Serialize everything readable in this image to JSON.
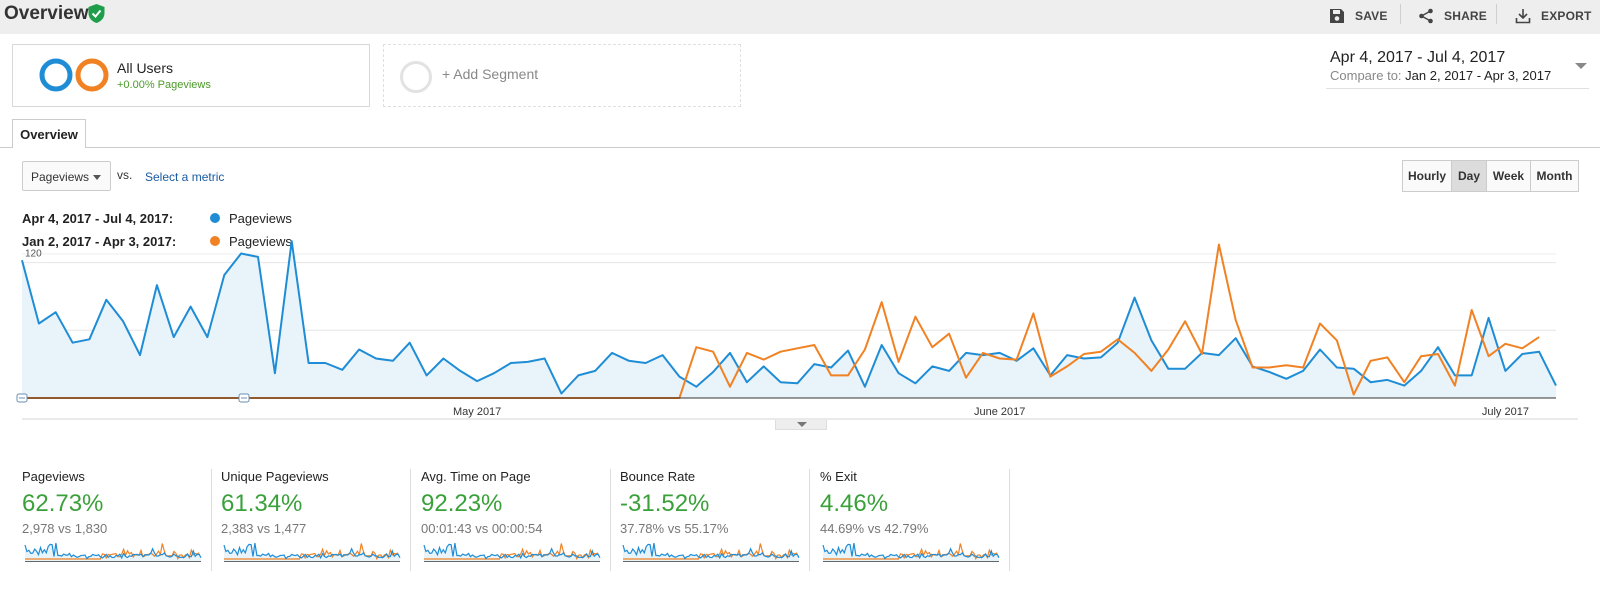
{
  "header": {
    "title": "Overview",
    "actions": [
      {
        "label": "SAVE",
        "icon": "save-icon"
      },
      {
        "label": "SHARE",
        "icon": "share-icon"
      },
      {
        "label": "EXPORT",
        "icon": "export-icon"
      }
    ]
  },
  "segments": {
    "active": {
      "name": "All Users",
      "subtitle": "+0.00% Pageviews"
    },
    "add_label": "+ Add Segment"
  },
  "date_range": {
    "main": "Apr 4, 2017 - Jul 4, 2017",
    "compare_label": "Compare to:",
    "compare_range": "Jan 2, 2017 - Apr 3, 2017"
  },
  "tabs": [
    {
      "label": "Overview",
      "active": true
    }
  ],
  "controls": {
    "metric": "Pageviews",
    "vs": "vs.",
    "select_metric": "Select a metric",
    "granularity": [
      "Hourly",
      "Day",
      "Week",
      "Month"
    ],
    "granularity_active": "Day"
  },
  "legend": [
    {
      "range": "Apr 4, 2017 - Jul 4, 2017:",
      "metric": "Pageviews",
      "color": "#1f8dd6"
    },
    {
      "range": "Jan 2, 2017 - Apr 3, 2017:",
      "metric": "Pageviews",
      "color": "#f08224"
    }
  ],
  "colors": {
    "current": "#1f8dd6",
    "previous": "#f08224",
    "fill": "#e8f3fa",
    "positive": "#3aa13a"
  },
  "chart_data": {
    "type": "line",
    "y_ticks": [
      "120",
      "60"
    ],
    "ylim": [
      0,
      140
    ],
    "x_labels": [
      {
        "label": "May 2017",
        "index": 27
      },
      {
        "label": "June 2017",
        "index": 58
      },
      {
        "label": "July 2017",
        "index": 88
      }
    ],
    "series": [
      {
        "name": "Pageviews",
        "color": "#1f8dd6",
        "fill": true,
        "values": [
          122,
          66,
          76,
          49,
          52,
          87,
          68,
          38,
          100,
          54,
          81,
          54,
          109,
          128,
          125,
          22,
          139,
          31,
          31,
          25,
          43,
          35,
          33,
          49,
          20,
          35,
          24,
          15,
          22,
          31,
          32,
          35,
          4,
          20,
          24,
          40,
          33,
          31,
          38,
          19,
          10,
          23,
          40,
          14,
          28,
          14,
          13,
          30,
          27,
          42,
          10,
          47,
          22,
          13,
          28,
          24,
          40,
          38,
          40,
          33,
          44,
          20,
          38,
          35,
          36,
          49,
          89,
          51,
          26,
          26,
          40,
          38,
          53,
          28,
          23,
          17,
          24,
          43,
          27,
          26,
          14,
          16,
          11,
          24,
          45,
          20,
          20,
          71,
          24,
          39,
          41,
          11
        ]
      },
      {
        "name": "Pageviews",
        "color": "#f08224",
        "fill": false,
        "values": [
          0,
          0,
          0,
          0,
          0,
          0,
          0,
          0,
          0,
          0,
          0,
          0,
          0,
          0,
          0,
          0,
          0,
          0,
          0,
          0,
          0,
          0,
          0,
          0,
          0,
          0,
          0,
          0,
          0,
          0,
          0,
          0,
          0,
          0,
          0,
          0,
          0,
          0,
          0,
          0,
          45,
          41,
          10,
          40,
          34,
          41,
          44,
          47,
          20,
          20,
          43,
          85,
          32,
          72,
          45,
          57,
          18,
          40,
          35,
          34,
          75,
          19,
          28,
          39,
          41,
          52,
          40,
          24,
          43,
          68,
          39,
          136,
          69,
          27,
          27,
          29,
          27,
          66,
          51,
          3,
          33,
          36,
          14,
          37,
          39,
          11,
          78,
          37,
          48,
          44,
          54
        ]
      }
    ]
  },
  "scorecards": [
    {
      "title": "Pageviews",
      "value": "62.73%",
      "sub": "2,978 vs 1,830"
    },
    {
      "title": "Unique Pageviews",
      "value": "61.34%",
      "sub": "2,383 vs 1,477"
    },
    {
      "title": "Avg. Time on Page",
      "value": "92.23%",
      "sub": "00:01:43 vs 00:00:54"
    },
    {
      "title": "Bounce Rate",
      "value": "-31.52%",
      "sub": "37.78% vs 55.17%"
    },
    {
      "title": "% Exit",
      "value": "4.46%",
      "sub": "44.69% vs 42.79%"
    }
  ]
}
